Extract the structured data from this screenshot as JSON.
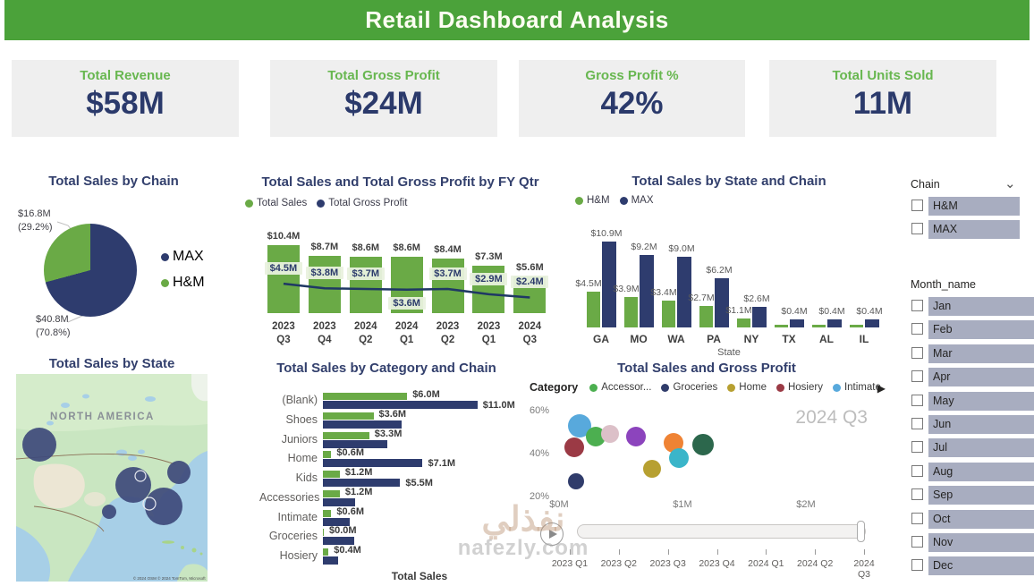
{
  "header": {
    "title": "Retail Dashboard Analysis"
  },
  "kpis": [
    {
      "label": "Total Revenue",
      "value": "$58M"
    },
    {
      "label": "Total Gross Profit",
      "value": "$24M"
    },
    {
      "label": "Gross Profit %",
      "value": "42%"
    },
    {
      "label": "Total Units Sold",
      "value": "11M"
    }
  ],
  "colors": {
    "header_green": "#4BA23A",
    "series_green": "#6AAA46",
    "series_navy": "#2E3C6E",
    "line_navy": "#1F3864",
    "title_navy": "#33406D",
    "kpi_title_green": "#68B750",
    "kpi_value_navy": "#2B3A6B",
    "slicer_item_bg": "#A8ADC0"
  },
  "slicers": {
    "chain": {
      "title": "Chain",
      "items": [
        "H&M",
        "MAX"
      ]
    },
    "month": {
      "title": "Month_name",
      "items": [
        "Jan",
        "Feb",
        "Mar",
        "Apr",
        "May",
        "Jun",
        "Jul",
        "Aug",
        "Sep",
        "Oct",
        "Nov",
        "Dec"
      ]
    }
  },
  "watermark": {
    "arabic": "نفذلي",
    "latin": "nafezly.com"
  },
  "chart_data": [
    {
      "id": "sales-by-chain",
      "type": "pie",
      "title": "Total Sales by Chain",
      "slices": [
        {
          "name": "MAX",
          "value_label": "$40.8M",
          "pct": 70.8,
          "color": "#2E3C6E"
        },
        {
          "name": "H&M",
          "value_label": "$16.8M",
          "pct": 29.2,
          "color": "#6AAA46"
        }
      ]
    },
    {
      "id": "sales-and-profit-by-fy-qtr",
      "type": "bar-line",
      "title": "Total Sales and Total Gross Profit by FY Qtr",
      "legend": [
        {
          "name": "Total Sales",
          "color": "#6AAA46"
        },
        {
          "name": "Total Gross Profit",
          "color": "#2E3C6E"
        }
      ],
      "categories": [
        "2023 Q3",
        "2023 Q4",
        "2024 Q2",
        "2024 Q1",
        "2023 Q2",
        "2023 Q1",
        "2024 Q3"
      ],
      "bars": {
        "name": "Total Sales",
        "values": [
          10.4,
          8.7,
          8.6,
          8.6,
          8.4,
          7.3,
          5.6
        ],
        "labels": [
          "$10.4M",
          "$8.7M",
          "$8.6M",
          "$8.6M",
          "$8.4M",
          "$7.3M",
          "$5.6M"
        ]
      },
      "line": {
        "name": "Total Gross Profit",
        "values": [
          4.5,
          3.8,
          3.7,
          3.6,
          3.7,
          2.9,
          2.4
        ],
        "labels": [
          "$4.5M",
          "$3.8M",
          "$3.7M",
          "$3.6M",
          "$3.7M",
          "$2.9M",
          "$2.4M"
        ],
        "label_positions": [
          "above",
          "above",
          "above",
          "below",
          "above",
          "above",
          "above"
        ]
      },
      "ylim": [
        0,
        11
      ]
    },
    {
      "id": "sales-by-state-and-chain",
      "type": "grouped-bar",
      "title": "Total Sales by State and Chain",
      "xlabel": "State",
      "categories": [
        "GA",
        "MO",
        "WA",
        "PA",
        "NY",
        "TX",
        "AL",
        "IL"
      ],
      "series": [
        {
          "name": "H&M",
          "color": "#6AAA46",
          "values": [
            4.5,
            3.9,
            3.4,
            2.7,
            1.1,
            0.2,
            0.2,
            0.2
          ],
          "labels": [
            "$4.5M",
            "$3.9M",
            "$3.4M",
            "$2.7M",
            "$1.1M",
            null,
            null,
            null
          ]
        },
        {
          "name": "MAX",
          "color": "#2E3C6E",
          "values": [
            10.9,
            9.2,
            9.0,
            6.2,
            2.6,
            0.4,
            0.4,
            0.4
          ],
          "labels": [
            "$10.9M",
            "$9.2M",
            "$9.0M",
            "$6.2M",
            "$2.6M",
            "$0.4M",
            "$0.4M",
            "$0.4M"
          ]
        }
      ],
      "ylim": [
        0,
        11.5
      ]
    },
    {
      "id": "sales-by-state-map",
      "type": "map",
      "title": "Total Sales by State",
      "region_label": "NORTH AMERICA",
      "attribution": "© 2024 OSM © 2024 TomTom, Microsoft",
      "bubbles": [
        {
          "state": "WA",
          "x": 26,
          "y": 79,
          "r": 19
        },
        {
          "state": "MO",
          "x": 131,
          "y": 124,
          "r": 20
        },
        {
          "state": "TX",
          "x": 104,
          "y": 154,
          "r": 8
        },
        {
          "state": "GA",
          "x": 165,
          "y": 148,
          "r": 21
        },
        {
          "state": "NY",
          "x": 182,
          "y": 110,
          "r": 13
        }
      ],
      "rings": [
        {
          "x": 139,
          "y": 114,
          "r": 6
        },
        {
          "x": 149,
          "y": 145,
          "r": 7
        }
      ]
    },
    {
      "id": "sales-by-category-and-chain",
      "type": "hbar",
      "title": "Total Sales by Category and Chain",
      "xlabel": "Total Sales",
      "categories": [
        "(Blank)",
        "Shoes",
        "Juniors",
        "Home",
        "Kids",
        "Accessories",
        "Intimate",
        "Groceries",
        "Hosiery"
      ],
      "series": [
        {
          "name": "H&M",
          "color": "#6AAA46",
          "values": [
            6.0,
            3.6,
            3.3,
            0.6,
            1.2,
            1.2,
            0.6,
            0.05,
            0.4
          ],
          "labels": [
            "$6.0M",
            "$3.6M",
            "$3.3M",
            "$0.6M",
            "$1.2M",
            "$1.2M",
            "$0.6M",
            "$0.0M",
            "$0.4M"
          ]
        },
        {
          "name": "MAX",
          "color": "#2E3C6E",
          "values": [
            11.0,
            5.6,
            4.6,
            7.1,
            5.5,
            2.3,
            1.9,
            2.2,
            1.1
          ],
          "labels": [
            "$11.0M",
            null,
            null,
            "$7.1M",
            "$5.5M",
            null,
            null,
            null,
            null
          ]
        }
      ],
      "xlim": [
        0,
        12
      ]
    },
    {
      "id": "sales-and-gross-profit-scatter",
      "type": "scatter",
      "title": "Total Sales and Gross Profit",
      "legend_title": "Category",
      "legend": [
        {
          "name": "Accessor...",
          "color": "#4CAF50"
        },
        {
          "name": "Groceries",
          "color": "#303C6B"
        },
        {
          "name": "Home",
          "color": "#B7A031"
        },
        {
          "name": "Hosiery",
          "color": "#9B3A45"
        },
        {
          "name": "Intimate",
          "color": "#58A9DC"
        }
      ],
      "frame_label": "2024 Q3",
      "x_ticks": [
        {
          "label": "$0M",
          "value": 0
        },
        {
          "label": "$1M",
          "value": 1
        },
        {
          "label": "$2M",
          "value": 2
        }
      ],
      "y_ticks": [
        {
          "label": "60%",
          "value": 60
        },
        {
          "label": "40%",
          "value": 40
        },
        {
          "label": "20%",
          "value": 20
        }
      ],
      "xlim": [
        0,
        2.5
      ],
      "ylim": [
        20,
        60
      ],
      "points": [
        {
          "category": "Intimate",
          "color": "#58A9DC",
          "x": 0.17,
          "y": 53,
          "r": 13
        },
        {
          "category": "Accessor...",
          "color": "#4CAF50",
          "x": 0.3,
          "y": 48,
          "r": 11
        },
        {
          "category": "",
          "color": "#DCC0C8",
          "x": 0.41,
          "y": 49,
          "r": 10
        },
        {
          "category": "",
          "color": "#8C44BD",
          "x": 0.62,
          "y": 48,
          "r": 11
        },
        {
          "category": "Hosiery",
          "color": "#9B3A45",
          "x": 0.12,
          "y": 43,
          "r": 11
        },
        {
          "category": "Groceries",
          "color": "#303C6B",
          "x": 0.14,
          "y": 27,
          "r": 9
        },
        {
          "category": "Home",
          "color": "#B7A031",
          "x": 0.75,
          "y": 33,
          "r": 10
        },
        {
          "category": "",
          "color": "#EF8334",
          "x": 0.93,
          "y": 45,
          "r": 11
        },
        {
          "category": "",
          "color": "#3AB5C9",
          "x": 0.97,
          "y": 38,
          "r": 11
        },
        {
          "category": "",
          "color": "#2C674C",
          "x": 1.17,
          "y": 44,
          "r": 12
        }
      ],
      "play_axis": [
        "2023 Q1",
        "2023 Q2",
        "2023 Q3",
        "2023 Q4",
        "2024 Q1",
        "2024 Q2",
        "2024 Q3"
      ]
    }
  ]
}
